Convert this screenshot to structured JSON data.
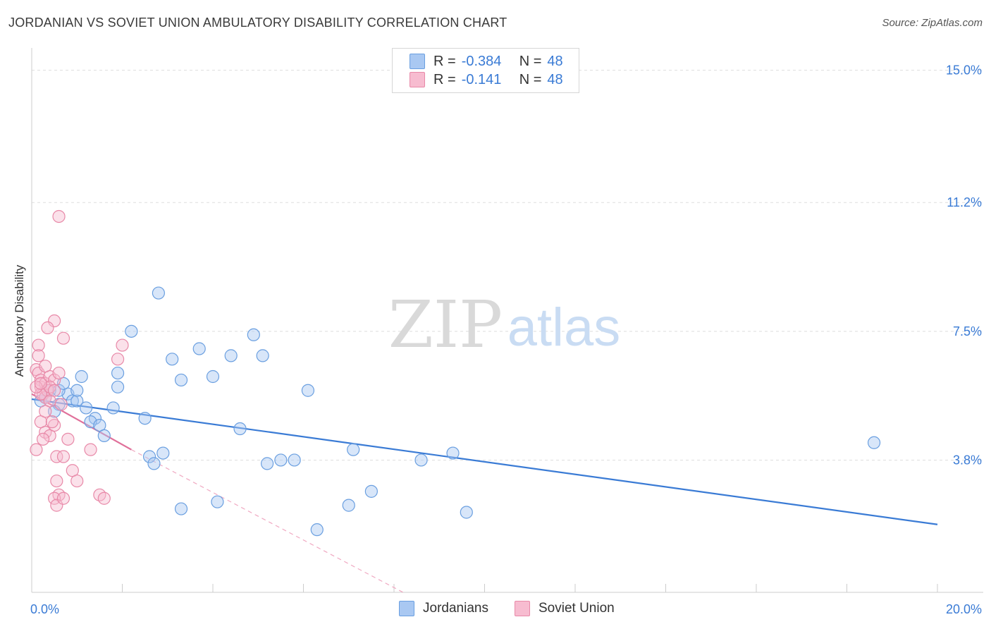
{
  "title": "JORDANIAN VS SOVIET UNION AMBULATORY DISABILITY CORRELATION CHART",
  "source": "Source: ZipAtlas.com",
  "watermark": {
    "zip": "ZIP",
    "atlas": "atlas"
  },
  "legend": {
    "rows": [
      {
        "r_label": "R =",
        "r_value": "-0.384",
        "n_label": "N =",
        "n_value": "48",
        "color": "#a9c8f2",
        "border": "#6a9fe0"
      },
      {
        "r_label": "R =",
        "r_value": "-0.141",
        "n_label": "N =",
        "n_value": "48",
        "color": "#f7bcd0",
        "border": "#e889a8"
      }
    ]
  },
  "bottom_legend": [
    {
      "label": "Jordanians",
      "color": "#a9c8f2",
      "border": "#6a9fe0"
    },
    {
      "label": "Soviet Union",
      "color": "#f7bcd0",
      "border": "#e889a8"
    }
  ],
  "chart_data": {
    "type": "scatter",
    "title": "JORDANIAN VS SOVIET UNION AMBULATORY DISABILITY CORRELATION CHART",
    "xlabel": "",
    "ylabel": "Ambulatory Disability",
    "xlim": [
      0,
      20
    ],
    "ylim": [
      0,
      15.5
    ],
    "x_tick_labels": [
      "0.0%",
      "20.0%"
    ],
    "y_ticks": [
      3.8,
      7.5,
      11.2,
      15.0
    ],
    "y_tick_labels": [
      "3.8%",
      "7.5%",
      "11.2%",
      "15.0%"
    ],
    "grid": "horizontal dashed",
    "legend_position": "top-center",
    "colors": {
      "jordanians": "#3a7bd5",
      "soviet": "#e0709a"
    },
    "series": [
      {
        "name": "Jordanians",
        "color": "#3a7bd5",
        "trend": {
          "x0": 0.0,
          "y0": 5.55,
          "x1": 20.0,
          "y1": 1.95
        },
        "points": [
          [
            0.2,
            5.5
          ],
          [
            0.4,
            5.8
          ],
          [
            0.3,
            5.6
          ],
          [
            0.8,
            5.7
          ],
          [
            0.6,
            5.8
          ],
          [
            0.6,
            5.4
          ],
          [
            0.9,
            5.5
          ],
          [
            1.0,
            5.5
          ],
          [
            1.2,
            5.3
          ],
          [
            1.1,
            6.2
          ],
          [
            1.4,
            5.0
          ],
          [
            1.3,
            4.9
          ],
          [
            1.5,
            4.8
          ],
          [
            1.6,
            4.5
          ],
          [
            1.9,
            6.3
          ],
          [
            1.8,
            5.3
          ],
          [
            1.9,
            5.9
          ],
          [
            2.2,
            7.5
          ],
          [
            2.5,
            5.0
          ],
          [
            2.6,
            3.9
          ],
          [
            2.7,
            3.7
          ],
          [
            2.8,
            8.6
          ],
          [
            2.9,
            4.0
          ],
          [
            3.1,
            6.7
          ],
          [
            3.3,
            6.1
          ],
          [
            3.3,
            2.4
          ],
          [
            3.7,
            7.0
          ],
          [
            4.0,
            6.2
          ],
          [
            4.1,
            2.6
          ],
          [
            4.4,
            6.8
          ],
          [
            4.6,
            4.7
          ],
          [
            4.9,
            7.4
          ],
          [
            5.1,
            6.8
          ],
          [
            5.2,
            3.7
          ],
          [
            5.5,
            3.8
          ],
          [
            5.8,
            3.8
          ],
          [
            6.1,
            5.8
          ],
          [
            6.3,
            1.8
          ],
          [
            7.0,
            2.5
          ],
          [
            7.1,
            4.1
          ],
          [
            7.5,
            2.9
          ],
          [
            8.6,
            3.8
          ],
          [
            9.3,
            4.0
          ],
          [
            9.6,
            2.3
          ],
          [
            18.6,
            4.3
          ],
          [
            0.5,
            5.2
          ],
          [
            0.7,
            6.0
          ],
          [
            1.0,
            5.8
          ]
        ]
      },
      {
        "name": "Soviet Union",
        "color": "#e0709a",
        "trend": {
          "x0": 0.0,
          "y0": 5.7,
          "x1": 2.2,
          "y1": 4.1
        },
        "trend_extension": {
          "x0": 2.2,
          "y0": 4.1,
          "x1": 8.2,
          "y1": 0.0
        },
        "points": [
          [
            0.1,
            6.4
          ],
          [
            0.15,
            6.3
          ],
          [
            0.2,
            6.1
          ],
          [
            0.2,
            5.9
          ],
          [
            0.25,
            5.7
          ],
          [
            0.3,
            6.0
          ],
          [
            0.3,
            5.6
          ],
          [
            0.35,
            5.8
          ],
          [
            0.4,
            6.2
          ],
          [
            0.4,
            5.5
          ],
          [
            0.15,
            7.1
          ],
          [
            0.5,
            7.8
          ],
          [
            0.35,
            7.6
          ],
          [
            0.5,
            6.1
          ],
          [
            0.6,
            6.3
          ],
          [
            0.2,
            5.7
          ],
          [
            0.1,
            5.9
          ],
          [
            0.3,
            6.5
          ],
          [
            0.4,
            5.9
          ],
          [
            0.5,
            5.8
          ],
          [
            0.2,
            4.9
          ],
          [
            0.3,
            4.6
          ],
          [
            0.4,
            4.5
          ],
          [
            0.5,
            4.8
          ],
          [
            0.25,
            4.4
          ],
          [
            0.1,
            4.1
          ],
          [
            0.55,
            3.9
          ],
          [
            0.7,
            3.9
          ],
          [
            0.55,
            3.2
          ],
          [
            0.6,
            2.8
          ],
          [
            0.5,
            2.7
          ],
          [
            0.55,
            2.5
          ],
          [
            0.7,
            2.7
          ],
          [
            0.8,
            4.4
          ],
          [
            0.9,
            3.5
          ],
          [
            1.0,
            3.2
          ],
          [
            1.3,
            4.1
          ],
          [
            1.5,
            2.8
          ],
          [
            1.6,
            2.7
          ],
          [
            1.9,
            6.7
          ],
          [
            2.0,
            7.1
          ],
          [
            0.6,
            10.8
          ],
          [
            0.7,
            7.3
          ],
          [
            0.15,
            6.8
          ],
          [
            0.3,
            5.2
          ],
          [
            0.45,
            4.9
          ],
          [
            0.65,
            5.4
          ],
          [
            0.2,
            6.0
          ]
        ]
      }
    ]
  }
}
